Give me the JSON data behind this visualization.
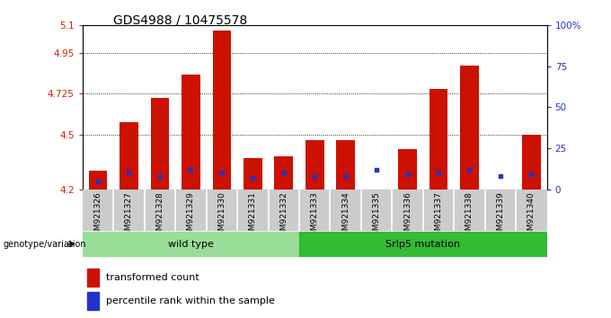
{
  "title": "GDS4988 / 10475578",
  "samples": [
    "GSM921326",
    "GSM921327",
    "GSM921328",
    "GSM921329",
    "GSM921330",
    "GSM921331",
    "GSM921332",
    "GSM921333",
    "GSM921334",
    "GSM921335",
    "GSM921336",
    "GSM921337",
    "GSM921338",
    "GSM921339",
    "GSM921340"
  ],
  "transformed_count": [
    4.3,
    4.57,
    4.7,
    4.83,
    5.07,
    4.37,
    4.38,
    4.47,
    4.47,
    4.2,
    4.42,
    4.75,
    4.88,
    4.2,
    4.5
  ],
  "percentile_rank": [
    5,
    10,
    8,
    12,
    10,
    7,
    10,
    8,
    8,
    12,
    9,
    10,
    12,
    8,
    9
  ],
  "ylim_left": [
    4.2,
    5.1
  ],
  "ylim_right": [
    0,
    100
  ],
  "yticks_left": [
    4.2,
    4.5,
    4.725,
    4.95,
    5.1
  ],
  "ytick_labels_left": [
    "4.2",
    "4.5",
    "4.725",
    "4.95",
    "5.1"
  ],
  "yticks_right": [
    0,
    25,
    50,
    75,
    100
  ],
  "ytick_labels_right": [
    "0",
    "25",
    "50",
    "75",
    "100%"
  ],
  "dotted_yticks": [
    4.95,
    4.725,
    4.5
  ],
  "bar_color": "#cc1100",
  "dot_color": "#2233cc",
  "bar_bottom": 4.2,
  "wild_type_count": 7,
  "wild_type_label": "wild type",
  "mutation_label": "Srlp5 mutation",
  "wild_type_color": "#99dd99",
  "mutation_color": "#33bb33",
  "group_label": "genotype/variation",
  "legend_bar_label": "transformed count",
  "legend_dot_label": "percentile rank within the sample",
  "axis_label_color_left": "#cc2200",
  "axis_label_color_right": "#2233cc",
  "title_fontsize": 10,
  "xtick_bg": "#c8c8c8",
  "xtick_sep": "#ffffff"
}
